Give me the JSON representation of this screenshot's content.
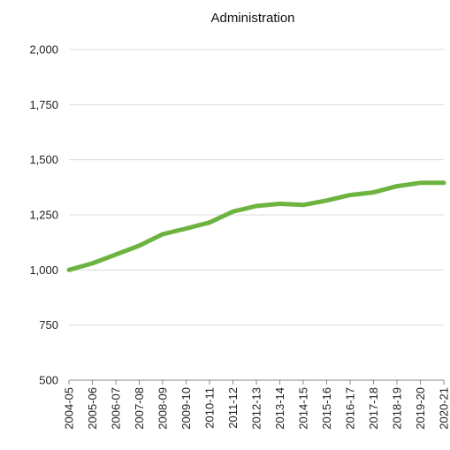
{
  "chart_data": {
    "type": "line",
    "title": "Administration",
    "xlabel": "",
    "ylabel": "",
    "categories": [
      "2004-05",
      "2005-06",
      "2006-07",
      "2007-08",
      "2008-09",
      "2009-10",
      "2010-11",
      "2011-12",
      "2012-13",
      "2013-14",
      "2014-15",
      "2015-16",
      "2016-17",
      "2017-18",
      "2018-19",
      "2019-20",
      "2020-21"
    ],
    "series": [
      {
        "values": [
          1000,
          1030,
          1070,
          1110,
          1162,
          1188,
          1215,
          1265,
          1290,
          1300,
          1295,
          1315,
          1340,
          1352,
          1380,
          1395,
          1395
        ]
      }
    ],
    "ylim": [
      500,
      2000
    ],
    "yticks": [
      500,
      750,
      1000,
      1250,
      1500,
      1750,
      2000
    ],
    "ytick_labels": [
      "500",
      "750",
      "1,000",
      "1,250",
      "1,500",
      "1,750",
      "2,000"
    ],
    "grid": true,
    "legend": "none",
    "colors": {
      "line": "#6db33f",
      "grid": "#d9d9d9",
      "axis": "#888888"
    }
  }
}
